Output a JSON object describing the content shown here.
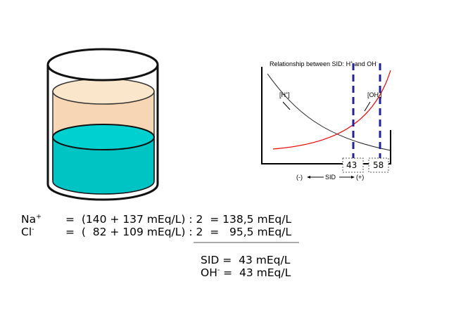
{
  "graph": {
    "title": {
      "text": "Relationship between SID: H",
      "sup1": "+",
      "mid": " and OH",
      "sup2": "-"
    },
    "h_label": {
      "base": "[H",
      "sup": "+",
      "end": "]"
    },
    "oh_label": {
      "base": "[OH",
      "sup": "-",
      "end": "]"
    },
    "markers": [
      "43",
      "58"
    ],
    "axis": {
      "neg": "(-)",
      "label": "SID",
      "pos": "(+)"
    }
  },
  "equations": [
    {
      "ion": "Na",
      "charge": "+",
      "rhs": "=  (140 + 137 mEq/L) : 2  = 138,5 mEq/L"
    },
    {
      "ion": "Cl",
      "charge": "-",
      "rhs": "=  (  82 + 109 mEq/L) : 2  =   95,5 mEq/L"
    }
  ],
  "results": [
    {
      "label": "SID",
      "rhs": " =  43 mEq/L"
    },
    {
      "label": "OH",
      "charge": "-",
      "rhs": " =  43 mEq/L"
    }
  ]
}
